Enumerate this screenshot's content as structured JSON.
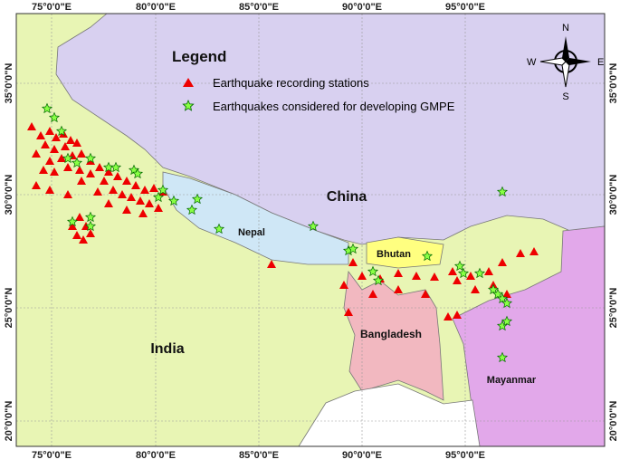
{
  "legend": {
    "title": "Legend",
    "items": [
      "Earthquake recording stations",
      "Earthquakes considered for developing GMPE"
    ]
  },
  "labels": {
    "china": "China",
    "nepal": "Nepal",
    "india": "India",
    "bhutan": "Bhutan",
    "bangladesh": "Bangladesh",
    "myanmar": "Mayanmar"
  },
  "compass": {
    "n": "N",
    "e": "E",
    "s": "S",
    "w": "W"
  },
  "graticule": {
    "longitudes": [
      "75°0'0\"E",
      "80°0'0\"E",
      "85°0'0\"E",
      "90°0'0\"E",
      "95°0'0\"E"
    ],
    "latitudes": [
      "35°0'0\"N",
      "30°0'0\"N",
      "25°0'0\"N",
      "20°0'0\"N"
    ]
  }
}
